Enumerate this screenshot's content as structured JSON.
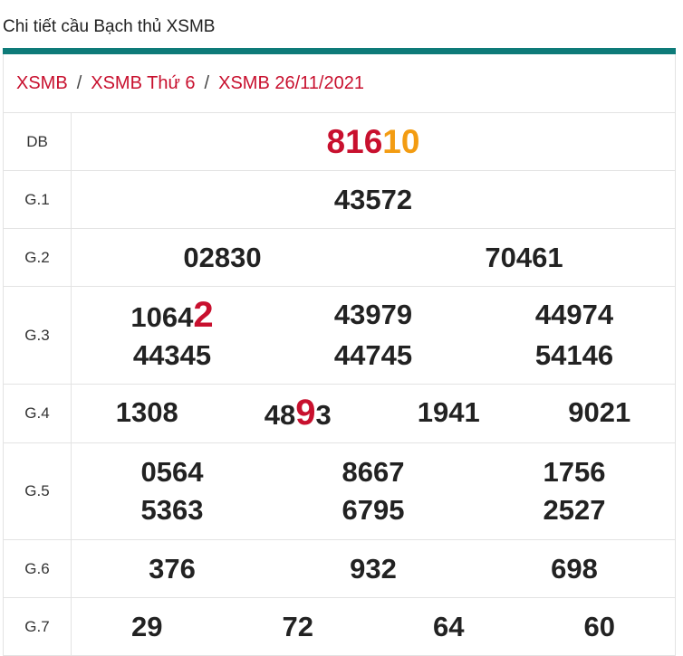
{
  "header": {
    "title": "Chi tiết cầu Bạch thủ XSMB"
  },
  "breadcrumb": {
    "items": [
      "XSMB",
      "XSMB Thứ 6",
      "XSMB 26/11/2021"
    ],
    "separator": "/"
  },
  "table": {
    "rows": [
      {
        "label": "DB",
        "numbers": [
          [
            {
              "text": "816",
              "color": "#c8102e"
            },
            {
              "text": "10",
              "color": "#f39c12"
            }
          ]
        ]
      },
      {
        "label": "G.1",
        "numbers": [
          "43572"
        ]
      },
      {
        "label": "G.2",
        "numbers": [
          "02830",
          "70461"
        ]
      },
      {
        "label": "G.3",
        "numbers": [
          [
            {
              "text": "1064"
            },
            {
              "text": "2",
              "color": "#c8102e",
              "emphasis": true
            }
          ],
          "43979",
          "44974",
          "44345",
          "44745",
          "54146"
        ]
      },
      {
        "label": "G.4",
        "numbers": [
          "1308",
          [
            {
              "text": "48"
            },
            {
              "text": "9",
              "color": "#c8102e",
              "emphasis": true
            },
            {
              "text": "3"
            }
          ],
          "1941",
          "9021"
        ]
      },
      {
        "label": "G.5",
        "numbers": [
          "0564",
          "8667",
          "1756",
          "5363",
          "6795",
          "2527"
        ]
      },
      {
        "label": "G.6",
        "numbers": [
          "376",
          "932",
          "698"
        ]
      },
      {
        "label": "G.7",
        "numbers": [
          "29",
          "72",
          "64",
          "60"
        ]
      }
    ]
  }
}
